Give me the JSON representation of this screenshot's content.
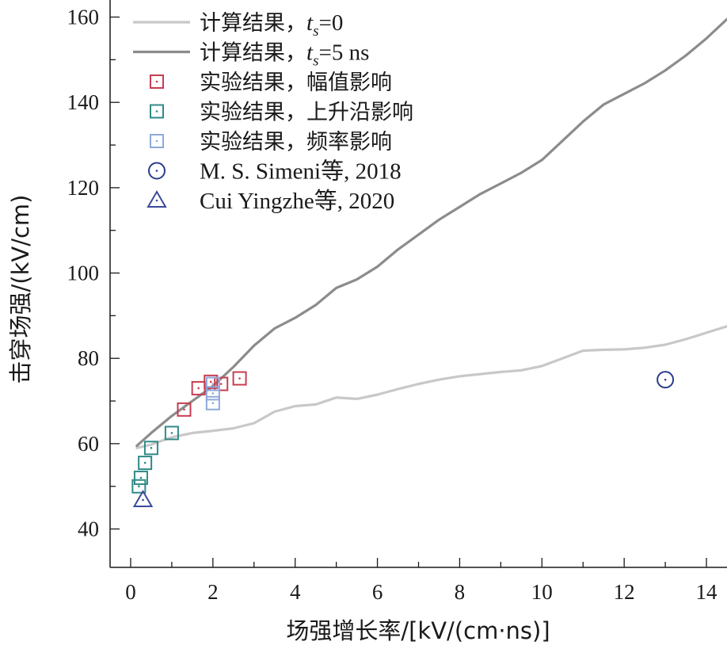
{
  "chart_data": {
    "type": "line",
    "xlabel": "场强增长率/[kV/(cm·ns)]",
    "ylabel": "击穿场强/(kV/cm)",
    "xlim": [
      -0.5,
      14.5
    ],
    "ylim": [
      31,
      164
    ],
    "xticks": [
      0,
      2,
      4,
      6,
      8,
      10,
      12,
      14
    ],
    "yticks": [
      40,
      60,
      80,
      100,
      120,
      140,
      160
    ],
    "grid": false,
    "legend_position": "top-left",
    "lines": [
      {
        "name_prefix": "计算结果，",
        "name_var": "t",
        "name_sub": "s",
        "name_suffix": "=0",
        "color": "#c8c8c8",
        "x": [
          0.15,
          0.5,
          1.0,
          1.5,
          2.0,
          2.5,
          3.0,
          3.5,
          4.0,
          4.5,
          5.0,
          5.5,
          6.0,
          6.5,
          7.0,
          7.5,
          8.0,
          8.5,
          9.0,
          9.5,
          10.0,
          10.5,
          11.0,
          11.5,
          12.0,
          12.5,
          13.0,
          13.5,
          14.0,
          14.5
        ],
        "y": [
          59.0,
          59.8,
          61.5,
          62.5,
          63.0,
          63.6,
          64.8,
          67.5,
          68.8,
          69.2,
          70.8,
          70.5,
          71.5,
          72.8,
          74.0,
          75.0,
          75.8,
          76.3,
          76.8,
          77.2,
          78.2,
          80.0,
          81.8,
          82.0,
          82.1,
          82.5,
          83.2,
          84.5,
          86.0,
          87.5
        ]
      },
      {
        "name_prefix": "计算结果，",
        "name_var": "t",
        "name_sub": "s",
        "name_suffix": "=5 ns",
        "color": "#8c8c8c",
        "x": [
          0.15,
          0.5,
          1.0,
          1.5,
          2.0,
          2.5,
          3.0,
          3.5,
          4.0,
          4.5,
          5.0,
          5.5,
          6.0,
          6.5,
          7.0,
          7.5,
          8.0,
          8.5,
          9.0,
          9.5,
          10.0,
          10.5,
          11.0,
          11.5,
          12.0,
          12.5,
          13.0,
          13.5,
          14.0,
          14.5
        ],
        "y": [
          59.5,
          62.5,
          66.5,
          70.0,
          73.5,
          78.0,
          83.0,
          87.0,
          89.5,
          92.5,
          96.5,
          98.5,
          101.5,
          105.5,
          109.0,
          112.5,
          115.5,
          118.5,
          121.0,
          123.5,
          126.5,
          131.0,
          135.5,
          139.5,
          142.0,
          144.5,
          147.5,
          151.0,
          155.0,
          159.5
        ]
      }
    ],
    "scatter": [
      {
        "name": "实验结果，幅值影响",
        "marker": "square",
        "color": "#c83c50",
        "points": [
          [
            1.3,
            68.0
          ],
          [
            1.65,
            73.0
          ],
          [
            1.95,
            74.5
          ],
          [
            2.2,
            74.0
          ],
          [
            2.65,
            75.3
          ]
        ]
      },
      {
        "name": "实验结果，上升沿影响",
        "marker": "square",
        "color": "#2f8a87",
        "points": [
          [
            0.2,
            50.0
          ],
          [
            0.25,
            52.0
          ],
          [
            0.35,
            55.5
          ],
          [
            0.5,
            59.0
          ],
          [
            1.0,
            62.5
          ]
        ]
      },
      {
        "name": "实验结果，频率影响",
        "marker": "square",
        "color": "#8ea9db",
        "points": [
          [
            2.0,
            69.5
          ],
          [
            2.0,
            71.8
          ],
          [
            2.0,
            74.0
          ]
        ]
      },
      {
        "name": "M. S. Simeni等, 2018",
        "marker": "circle",
        "color": "#2a3c8c",
        "points": [
          [
            13.0,
            75.0
          ]
        ]
      },
      {
        "name": "Cui Yingzhe等, 2020",
        "marker": "triangle",
        "color": "#3c4a9c",
        "points": [
          [
            0.3,
            46.8
          ]
        ]
      }
    ]
  }
}
